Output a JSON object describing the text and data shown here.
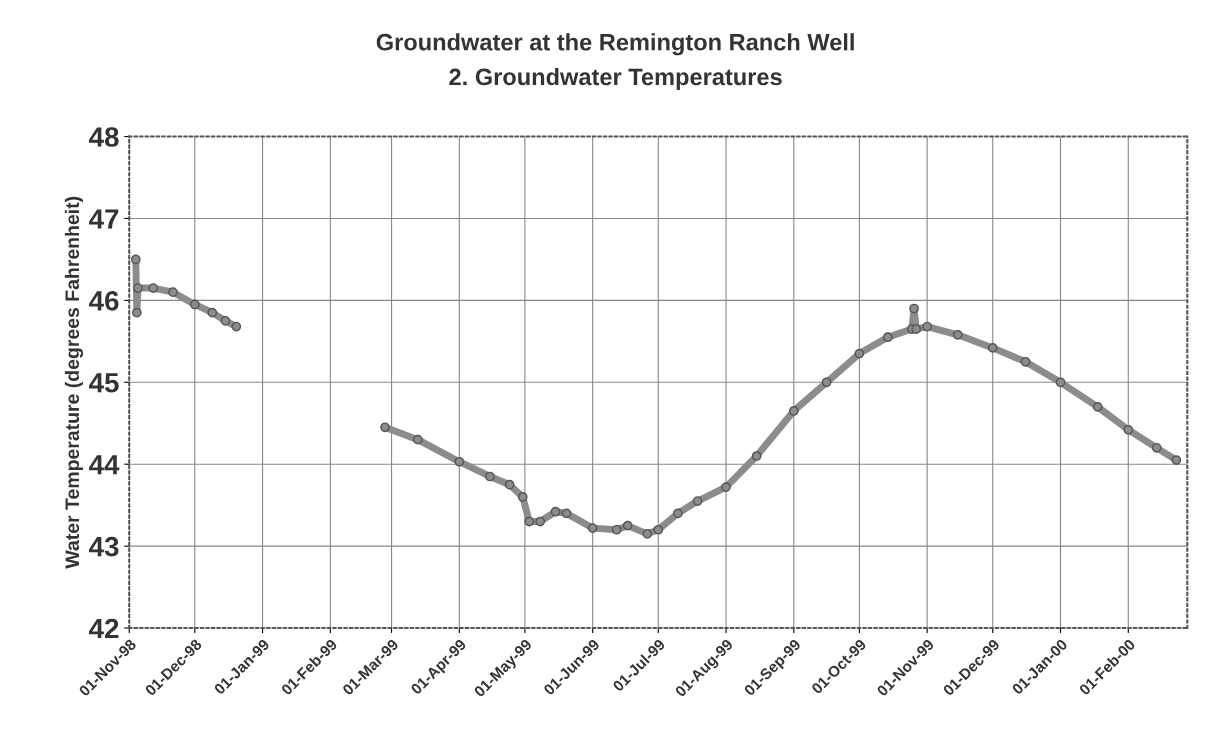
{
  "chart_data": {
    "type": "line",
    "title": "Groundwater at the Remington Ranch Well",
    "subtitle": "2. Groundwater Temperatures",
    "ylabel": "Water Temperature (degrees Fahrenheit)",
    "xlim": [
      "1998-11-01",
      "2000-02-28"
    ],
    "ylim": [
      42,
      48
    ],
    "yticks": [
      42,
      43,
      44,
      45,
      46,
      47,
      48
    ],
    "xticks": [
      {
        "value": "1998-11-01",
        "label": "01-Nov-98"
      },
      {
        "value": "1998-12-01",
        "label": "01-Dec-98"
      },
      {
        "value": "1999-01-01",
        "label": "01-Jan-99"
      },
      {
        "value": "1999-02-01",
        "label": "01-Feb-99"
      },
      {
        "value": "1999-03-01",
        "label": "01-Mar-99"
      },
      {
        "value": "1999-04-01",
        "label": "01-Apr-99"
      },
      {
        "value": "1999-05-01",
        "label": "01-May-99"
      },
      {
        "value": "1999-06-01",
        "label": "01-Jun-99"
      },
      {
        "value": "1999-07-01",
        "label": "01-Jul-99"
      },
      {
        "value": "1999-08-01",
        "label": "01-Aug-99"
      },
      {
        "value": "1999-09-01",
        "label": "01-Sep-99"
      },
      {
        "value": "1999-10-01",
        "label": "01-Oct-99"
      },
      {
        "value": "1999-11-01",
        "label": "01-Nov-99"
      },
      {
        "value": "1999-12-01",
        "label": "01-Dec-99"
      },
      {
        "value": "2000-01-01",
        "label": "01-Jan-00"
      },
      {
        "value": "2000-02-01",
        "label": "01-Feb-00"
      }
    ],
    "grid": true,
    "marker": "circle",
    "line_style": "solid",
    "series": [
      {
        "color": "#8c8c8c",
        "x": [
          "1998-11-04T00:00",
          "1998-11-04T12:00",
          "1998-11-05",
          "1998-11-12",
          "1998-11-21",
          "1998-12-01",
          "1998-12-09",
          "1998-12-15",
          "1998-12-20",
          "1999-01-20",
          "1999-02-26",
          "1999-03-13",
          "1999-04-01",
          "1999-04-15",
          "1999-04-24",
          "1999-04-30",
          "1999-05-03",
          "1999-05-08",
          "1999-05-15",
          "1999-05-20",
          "1999-06-01",
          "1999-06-12",
          "1999-06-17",
          "1999-06-26",
          "1999-07-01",
          "1999-07-10",
          "1999-07-19",
          "1999-08-01",
          "1999-08-15",
          "1999-09-01",
          "1999-09-16",
          "1999-10-01",
          "1999-10-14",
          "1999-10-25",
          "1999-10-26",
          "1999-10-27",
          "1999-11-01",
          "1999-11-15",
          "1999-12-01",
          "1999-12-16",
          "2000-01-01",
          "2000-01-18",
          "2000-02-01",
          "2000-02-14",
          "2000-02-23"
        ],
        "values": [
          46.5,
          45.85,
          46.15,
          46.15,
          46.1,
          45.95,
          45.85,
          45.75,
          45.68,
          null,
          44.45,
          44.3,
          44.03,
          43.85,
          43.75,
          43.6,
          43.3,
          43.3,
          43.42,
          43.4,
          43.22,
          43.2,
          43.25,
          43.15,
          43.2,
          43.4,
          43.55,
          43.72,
          44.1,
          44.65,
          45.0,
          45.35,
          45.55,
          45.65,
          45.9,
          45.65,
          45.68,
          45.58,
          45.42,
          45.25,
          45.0,
          44.7,
          44.42,
          44.2,
          44.05
        ]
      }
    ]
  }
}
